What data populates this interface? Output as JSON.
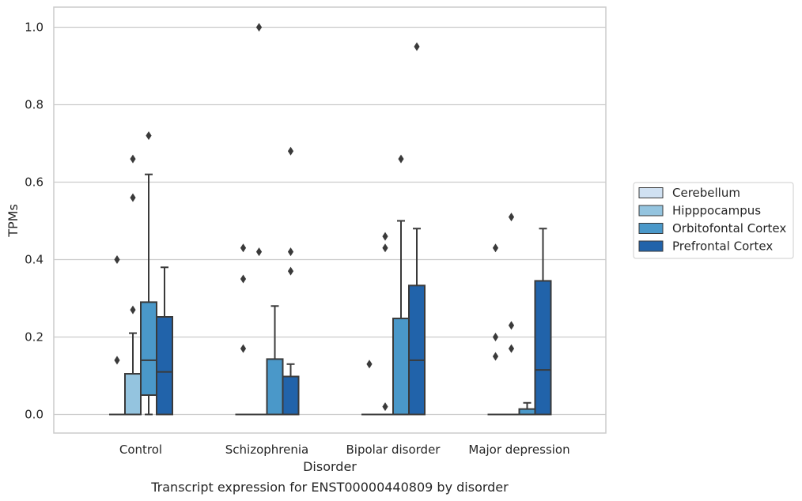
{
  "chart_data": {
    "type": "box",
    "caption": "Transcript expression for ENST00000440809 by disorder",
    "xlabel": "Disorder",
    "ylabel": "TPMs",
    "ylim": [
      -0.048,
      1.052
    ],
    "yticks": [
      0.0,
      0.2,
      0.4,
      0.6,
      0.8,
      1.0
    ],
    "ytick_labels": [
      "0.0",
      "0.2",
      "0.4",
      "0.6",
      "0.8",
      "1.0"
    ],
    "grid": "horizontal",
    "legend_position": "right",
    "categories": [
      "Control",
      "Schizophrenia",
      "Bipolar disorder",
      "Major depression"
    ],
    "series": [
      {
        "name": "Cerebellum",
        "color": "#d0e1f2",
        "boxes": [
          {
            "q1": 0,
            "median": 0,
            "q3": 0,
            "whislo": 0,
            "whishi": 0,
            "fliers": [
              0.14,
              0.4
            ]
          },
          {
            "q1": 0,
            "median": 0,
            "q3": 0,
            "whislo": 0,
            "whishi": 0,
            "fliers": [
              0.17,
              0.35,
              0.43
            ]
          },
          {
            "q1": 0,
            "median": 0,
            "q3": 0,
            "whislo": 0,
            "whishi": 0,
            "fliers": [
              0.13
            ]
          },
          {
            "q1": 0,
            "median": 0,
            "q3": 0,
            "whislo": 0,
            "whishi": 0,
            "fliers": [
              0.15,
              0.2,
              0.43
            ]
          }
        ]
      },
      {
        "name": "Hipppocampus",
        "color": "#94c4df",
        "boxes": [
          {
            "q1": 0,
            "median": 0,
            "q3": 0.105,
            "whislo": 0,
            "whishi": 0.21,
            "fliers": [
              0.27,
              0.56,
              0.66
            ]
          },
          {
            "q1": 0,
            "median": 0,
            "q3": 0,
            "whislo": 0,
            "whishi": 0,
            "fliers": [
              0.42,
              1.0
            ]
          },
          {
            "q1": 0,
            "median": 0,
            "q3": 0,
            "whislo": 0,
            "whishi": 0,
            "fliers": [
              0.02,
              0.43,
              0.46
            ]
          },
          {
            "q1": 0,
            "median": 0,
            "q3": 0,
            "whislo": 0,
            "whishi": 0,
            "fliers": [
              0.17,
              0.23,
              0.51
            ]
          }
        ]
      },
      {
        "name": "Orbitofontal Cortex",
        "color": "#4a98c9",
        "boxes": [
          {
            "q1": 0.05,
            "median": 0.14,
            "q3": 0.29,
            "whislo": 0,
            "whishi": 0.62,
            "fliers": [
              0.72
            ]
          },
          {
            "q1": 0,
            "median": 0,
            "q3": 0.143,
            "whislo": 0,
            "whishi": 0.28,
            "fliers": []
          },
          {
            "q1": 0,
            "median": 0,
            "q3": 0.248,
            "whislo": 0,
            "whishi": 0.5,
            "fliers": [
              0.66
            ]
          },
          {
            "q1": 0,
            "median": 0,
            "q3": 0.014,
            "whislo": 0,
            "whishi": 0.03,
            "fliers": []
          }
        ]
      },
      {
        "name": "Prefrontal Cortex",
        "color": "#2163aa",
        "boxes": [
          {
            "q1": 0,
            "median": 0.11,
            "q3": 0.252,
            "whislo": 0,
            "whishi": 0.38,
            "fliers": []
          },
          {
            "q1": 0,
            "median": 0,
            "q3": 0.098,
            "whislo": 0,
            "whishi": 0.13,
            "fliers": [
              0.37,
              0.42,
              0.68
            ]
          },
          {
            "q1": 0,
            "median": 0.14,
            "q3": 0.333,
            "whislo": 0,
            "whishi": 0.48,
            "fliers": [
              0.95
            ]
          },
          {
            "q1": 0,
            "median": 0.115,
            "q3": 0.345,
            "whislo": 0,
            "whishi": 0.48,
            "fliers": []
          }
        ]
      }
    ]
  }
}
